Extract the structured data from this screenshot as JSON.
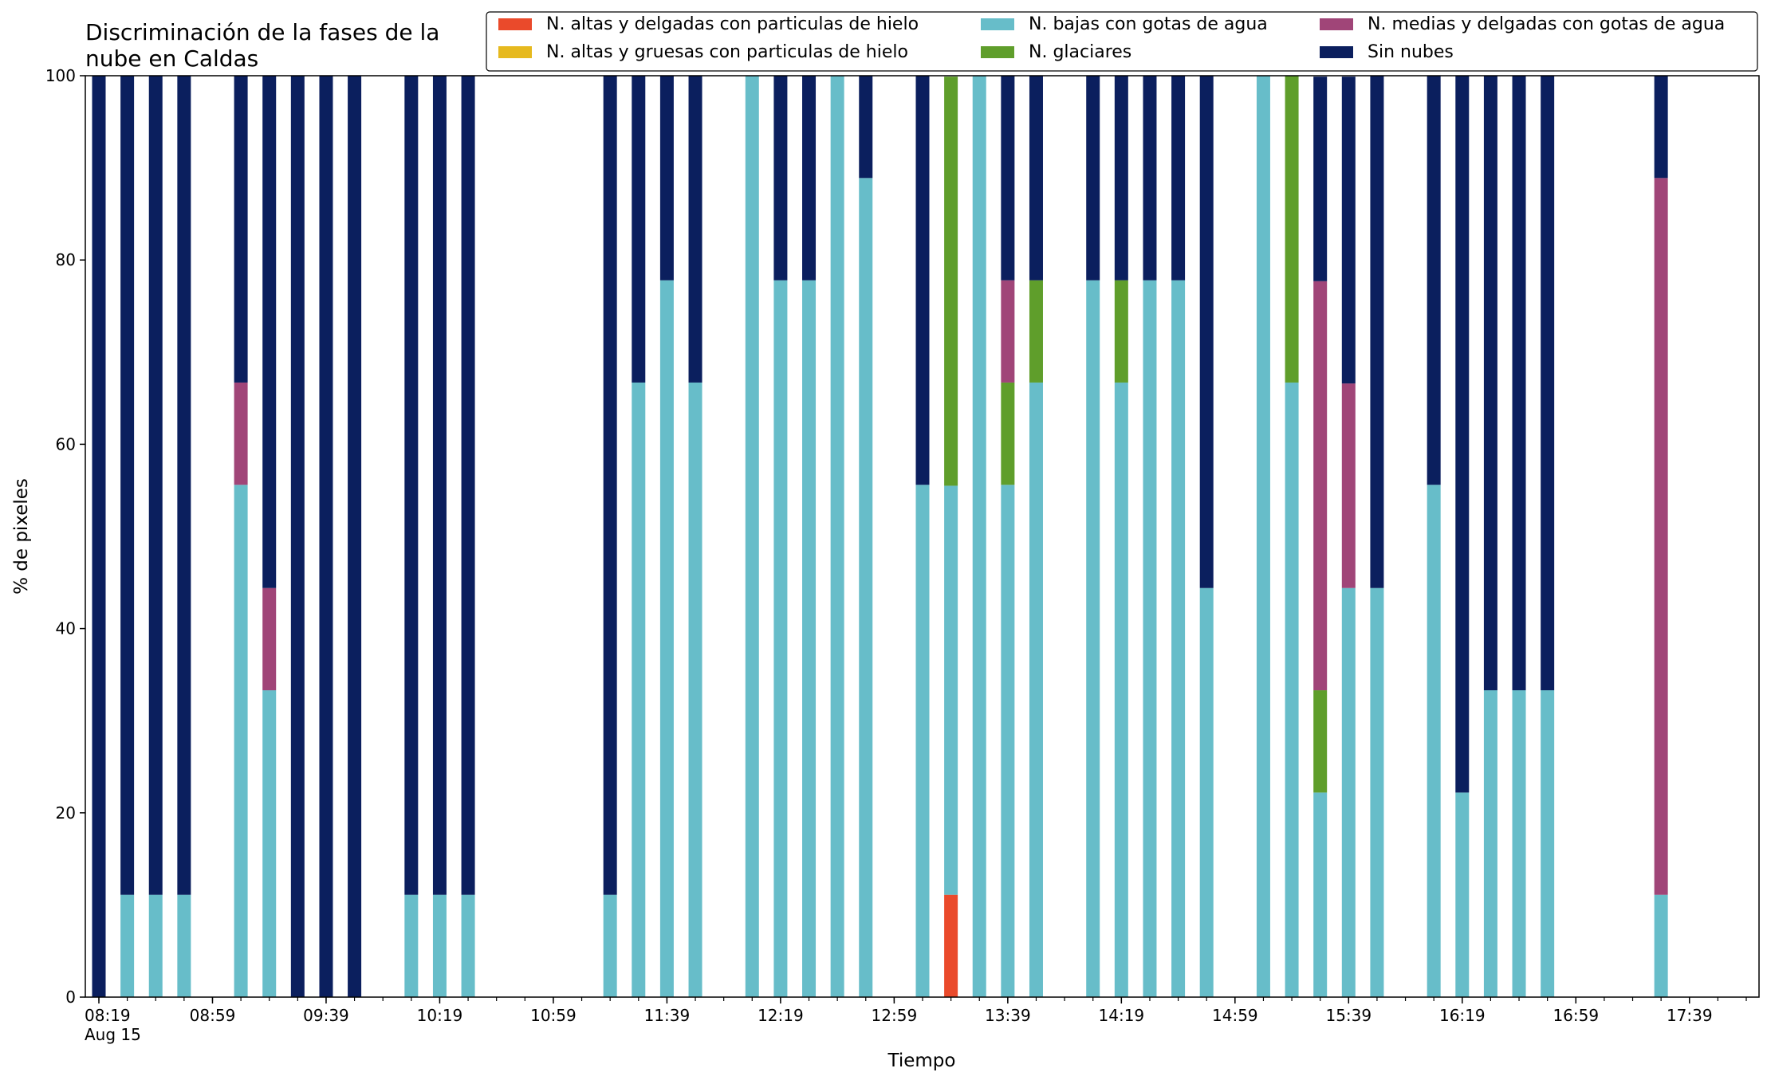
{
  "chart_data": {
    "type": "bar",
    "stacked": true,
    "title": "Discriminación de la fases de la\nnube en Caldas",
    "xlabel": "Tiempo",
    "ylabel": "% de pixeles",
    "ylim": [
      0,
      100
    ],
    "yticks": [
      0,
      20,
      40,
      60,
      80,
      100
    ],
    "x_tick_labels": [
      "08:19\nAug 15",
      "08:59",
      "09:39",
      "10:19",
      "10:59",
      "11:39",
      "12:19",
      "12:59",
      "13:39",
      "14:19",
      "14:59",
      "15:39",
      "16:19",
      "16:59",
      "17:39"
    ],
    "x_tick_times": [
      "08:19",
      "08:59",
      "09:39",
      "10:19",
      "10:59",
      "11:39",
      "12:19",
      "12:59",
      "13:39",
      "14:19",
      "14:59",
      "15:39",
      "16:19",
      "16:59",
      "17:39"
    ],
    "x_domain": [
      "08:19",
      "17:59"
    ],
    "minor_tick_minutes": 10,
    "legend": {
      "position": "top-right",
      "columns": 3
    },
    "series_order": [
      "hielo_delgadas",
      "hielo_gruesas",
      "bajas_agua",
      "glaciares",
      "medias_agua",
      "sin_nubes"
    ],
    "legend_order": [
      "hielo_delgadas",
      "hielo_gruesas",
      "bajas_agua",
      "glaciares",
      "medias_agua",
      "sin_nubes"
    ],
    "series_meta": {
      "hielo_delgadas": {
        "name": "N. altas y delgadas con particulas de hielo",
        "color": "#ea4a2b"
      },
      "hielo_gruesas": {
        "name": "N. altas y gruesas con particulas de hielo",
        "color": "#e6b91e"
      },
      "bajas_agua": {
        "name": "N. bajas con gotas de agua",
        "color": "#67bdc9"
      },
      "glaciares": {
        "name": "N. glaciares",
        "color": "#5f9e2b"
      },
      "medias_agua": {
        "name": "N. medias y delgadas con gotas de agua",
        "color": "#a04578"
      },
      "sin_nubes": {
        "name": "Sin nubes",
        "color": "#0b1f5e"
      }
    },
    "bars": [
      {
        "time": "08:19",
        "bajas_agua": 0,
        "sin_nubes": 100
      },
      {
        "time": "08:29",
        "bajas_agua": 11.1,
        "sin_nubes": 88.9
      },
      {
        "time": "08:39",
        "bajas_agua": 11.1,
        "sin_nubes": 88.9
      },
      {
        "time": "08:49",
        "bajas_agua": 11.1,
        "sin_nubes": 88.9
      },
      {
        "time": "09:09",
        "bajas_agua": 55.6,
        "medias_agua": 11.1,
        "sin_nubes": 33.3
      },
      {
        "time": "09:19",
        "bajas_agua": 33.3,
        "medias_agua": 11.1,
        "sin_nubes": 55.6
      },
      {
        "time": "09:29",
        "sin_nubes": 100
      },
      {
        "time": "09:39",
        "sin_nubes": 100
      },
      {
        "time": "09:49",
        "sin_nubes": 100
      },
      {
        "time": "10:09",
        "bajas_agua": 11.1,
        "sin_nubes": 88.9
      },
      {
        "time": "10:19",
        "bajas_agua": 11.1,
        "sin_nubes": 88.9
      },
      {
        "time": "10:29",
        "bajas_agua": 11.1,
        "sin_nubes": 88.9
      },
      {
        "time": "11:19",
        "bajas_agua": 11.1,
        "sin_nubes": 88.9
      },
      {
        "time": "11:29",
        "bajas_agua": 66.7,
        "sin_nubes": 33.3
      },
      {
        "time": "11:39",
        "bajas_agua": 77.8,
        "sin_nubes": 22.2
      },
      {
        "time": "11:49",
        "bajas_agua": 66.7,
        "sin_nubes": 33.3
      },
      {
        "time": "12:09",
        "bajas_agua": 100
      },
      {
        "time": "12:19",
        "bajas_agua": 77.8,
        "sin_nubes": 22.2
      },
      {
        "time": "12:29",
        "bajas_agua": 77.8,
        "sin_nubes": 22.2
      },
      {
        "time": "12:39",
        "bajas_agua": 100
      },
      {
        "time": "12:49",
        "bajas_agua": 88.9,
        "sin_nubes": 11.1
      },
      {
        "time": "13:09",
        "bajas_agua": 55.6,
        "sin_nubes": 44.4
      },
      {
        "time": "13:19",
        "hielo_delgadas": 11.1,
        "bajas_agua": 44.4,
        "glaciares": 44.4
      },
      {
        "time": "13:29",
        "bajas_agua": 100
      },
      {
        "time": "13:39",
        "bajas_agua": 55.6,
        "glaciares": 11.1,
        "medias_agua": 11.1,
        "sin_nubes": 22.2
      },
      {
        "time": "13:49",
        "bajas_agua": 66.7,
        "glaciares": 11.1,
        "sin_nubes": 22.2
      },
      {
        "time": "14:09",
        "bajas_agua": 77.8,
        "sin_nubes": 22.2
      },
      {
        "time": "14:19",
        "bajas_agua": 66.7,
        "glaciares": 11.1,
        "sin_nubes": 22.2
      },
      {
        "time": "14:29",
        "bajas_agua": 77.8,
        "sin_nubes": 22.2
      },
      {
        "time": "14:39",
        "bajas_agua": 77.8,
        "sin_nubes": 22.2
      },
      {
        "time": "14:49",
        "bajas_agua": 44.4,
        "sin_nubes": 55.6
      },
      {
        "time": "15:09",
        "bajas_agua": 100
      },
      {
        "time": "15:19",
        "bajas_agua": 66.7,
        "glaciares": 33.3
      },
      {
        "time": "15:29",
        "bajas_agua": 22.2,
        "glaciares": 11.1,
        "medias_agua": 44.4,
        "sin_nubes": 22.2
      },
      {
        "time": "15:39",
        "bajas_agua": 44.4,
        "medias_agua": 22.2,
        "sin_nubes": 33.3
      },
      {
        "time": "15:49",
        "bajas_agua": 44.4,
        "sin_nubes": 55.6
      },
      {
        "time": "16:09",
        "bajas_agua": 55.6,
        "sin_nubes": 44.4
      },
      {
        "time": "16:19",
        "bajas_agua": 22.2,
        "sin_nubes": 77.8
      },
      {
        "time": "16:29",
        "bajas_agua": 33.3,
        "sin_nubes": 66.7
      },
      {
        "time": "16:39",
        "bajas_agua": 33.3,
        "sin_nubes": 66.7
      },
      {
        "time": "16:49",
        "bajas_agua": 33.3,
        "sin_nubes": 66.7
      },
      {
        "time": "17:29",
        "bajas_agua": 11.1,
        "medias_agua": 77.8,
        "sin_nubes": 11.1
      }
    ]
  }
}
